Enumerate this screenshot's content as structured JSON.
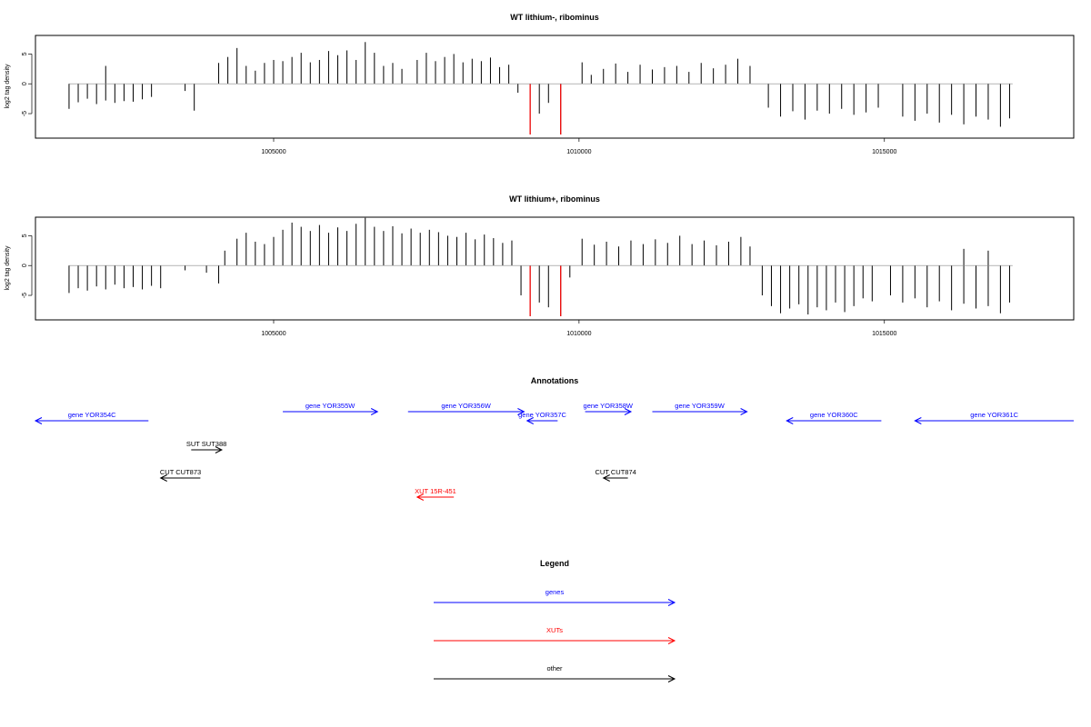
{
  "chart_data": [
    {
      "type": "bar",
      "title": "WT lithium-, ribominus",
      "ylabel": "log2 tag density",
      "xlim": [
        1001100,
        1018100
      ],
      "ylim": [
        -8.5,
        7.5
      ],
      "x_ticks": [
        1005000,
        1010000,
        1015000
      ],
      "x_tick_labels": [
        "1005000",
        "1010000",
        "1015000"
      ],
      "y_ticks": [
        -5,
        0,
        5
      ],
      "y_tick_labels": [
        "-5",
        "0",
        "5"
      ],
      "series": [
        {
          "values": [
            [
              1001650,
              -4.2
            ],
            [
              1001800,
              -3.1
            ],
            [
              1001950,
              -2.5
            ],
            [
              1002100,
              -3.4
            ],
            [
              1002250,
              -2.8
            ],
            [
              1002400,
              -3.2
            ],
            [
              1002550,
              -2.9
            ],
            [
              1002700,
              -3.0
            ],
            [
              1002850,
              -2.6
            ],
            [
              1003000,
              -2.2
            ],
            [
              1002250,
              3.0
            ],
            [
              1003550,
              -1.2
            ],
            [
              1003700,
              -4.5
            ],
            [
              1004100,
              3.5
            ],
            [
              1004250,
              4.5
            ],
            [
              1004400,
              6.0
            ],
            [
              1004550,
              3.0
            ],
            [
              1004700,
              2.2
            ],
            [
              1004850,
              3.5
            ],
            [
              1005000,
              4.0
            ],
            [
              1005150,
              3.8
            ],
            [
              1005300,
              4.5
            ],
            [
              1005450,
              5.2
            ],
            [
              1005600,
              3.6
            ],
            [
              1005750,
              4.0
            ],
            [
              1005900,
              5.5
            ],
            [
              1006050,
              4.8
            ],
            [
              1006200,
              5.6
            ],
            [
              1006350,
              4.0
            ],
            [
              1006500,
              7.0
            ],
            [
              1006650,
              5.2
            ],
            [
              1006800,
              3.0
            ],
            [
              1006950,
              3.5
            ],
            [
              1007100,
              2.5
            ],
            [
              1007350,
              4.0
            ],
            [
              1007500,
              5.2
            ],
            [
              1007650,
              3.8
            ],
            [
              1007800,
              4.5
            ],
            [
              1007950,
              5.0
            ],
            [
              1008100,
              3.6
            ],
            [
              1008250,
              4.2
            ],
            [
              1008400,
              3.8
            ],
            [
              1008550,
              4.4
            ],
            [
              1008700,
              2.8
            ],
            [
              1008850,
              3.2
            ],
            [
              1009000,
              -1.5
            ],
            [
              1009200,
              -8.5
            ],
            [
              1009350,
              -5.0
            ],
            [
              1009500,
              -3.2
            ],
            [
              1009700,
              -8.5
            ],
            [
              1010050,
              3.6
            ],
            [
              1010200,
              1.5
            ],
            [
              1010400,
              2.5
            ],
            [
              1010600,
              3.4
            ],
            [
              1010800,
              2.0
            ],
            [
              1011000,
              3.2
            ],
            [
              1011200,
              2.4
            ],
            [
              1011400,
              2.8
            ],
            [
              1011600,
              3.0
            ],
            [
              1011800,
              2.0
            ],
            [
              1012000,
              3.5
            ],
            [
              1012200,
              2.6
            ],
            [
              1012400,
              3.2
            ],
            [
              1012600,
              4.2
            ],
            [
              1012800,
              3.0
            ],
            [
              1013100,
              -4.0
            ],
            [
              1013300,
              -5.5
            ],
            [
              1013500,
              -4.6
            ],
            [
              1013700,
              -6.0
            ],
            [
              1013900,
              -4.5
            ],
            [
              1014100,
              -5.0
            ],
            [
              1014300,
              -4.2
            ],
            [
              1014500,
              -5.2
            ],
            [
              1014700,
              -4.8
            ],
            [
              1014900,
              -4.0
            ],
            [
              1015300,
              -5.5
            ],
            [
              1015500,
              -6.2
            ],
            [
              1015700,
              -5.0
            ],
            [
              1015900,
              -6.5
            ],
            [
              1016100,
              -5.2
            ],
            [
              1016300,
              -6.8
            ],
            [
              1016500,
              -5.5
            ],
            [
              1016700,
              -6.0
            ],
            [
              1016900,
              -7.2
            ],
            [
              1017050,
              -5.8
            ]
          ]
        }
      ],
      "highlight": [
        {
          "x": 1009200,
          "value": -8.5,
          "color": "#ff0000"
        },
        {
          "x": 1009700,
          "value": -8.5,
          "color": "#ff0000"
        }
      ]
    },
    {
      "type": "bar",
      "title": "WT lithium+, ribominus",
      "ylabel": "log2 tag density",
      "xlim": [
        1001100,
        1018100
      ],
      "ylim": [
        -8.5,
        7.5
      ],
      "x_ticks": [
        1005000,
        1010000,
        1015000
      ],
      "x_tick_labels": [
        "1005000",
        "1010000",
        "1015000"
      ],
      "y_ticks": [
        -5,
        0,
        5
      ],
      "y_tick_labels": [
        "-5",
        "0",
        "5"
      ],
      "series": [
        {
          "values": [
            [
              1001650,
              -4.6
            ],
            [
              1001800,
              -3.8
            ],
            [
              1001950,
              -4.2
            ],
            [
              1002100,
              -3.5
            ],
            [
              1002250,
              -4.0
            ],
            [
              1002400,
              -3.2
            ],
            [
              1002550,
              -3.8
            ],
            [
              1002700,
              -3.6
            ],
            [
              1002850,
              -4.0
            ],
            [
              1003000,
              -3.4
            ],
            [
              1003150,
              -3.8
            ],
            [
              1003550,
              -0.8
            ],
            [
              1003900,
              -1.2
            ],
            [
              1004100,
              -3.0
            ],
            [
              1004200,
              2.5
            ],
            [
              1004400,
              4.5
            ],
            [
              1004550,
              5.5
            ],
            [
              1004700,
              4.0
            ],
            [
              1004850,
              3.6
            ],
            [
              1005000,
              4.8
            ],
            [
              1005150,
              6.0
            ],
            [
              1005300,
              7.2
            ],
            [
              1005450,
              6.5
            ],
            [
              1005600,
              5.8
            ],
            [
              1005750,
              6.8
            ],
            [
              1005900,
              5.5
            ],
            [
              1006050,
              6.4
            ],
            [
              1006200,
              5.8
            ],
            [
              1006350,
              7.0
            ],
            [
              1006500,
              8.0
            ],
            [
              1006650,
              6.5
            ],
            [
              1006800,
              5.8
            ],
            [
              1006950,
              6.6
            ],
            [
              1007100,
              5.4
            ],
            [
              1007250,
              6.2
            ],
            [
              1007400,
              5.5
            ],
            [
              1007550,
              6.0
            ],
            [
              1007700,
              5.6
            ],
            [
              1007850,
              5.0
            ],
            [
              1008000,
              4.8
            ],
            [
              1008150,
              5.5
            ],
            [
              1008300,
              4.4
            ],
            [
              1008450,
              5.2
            ],
            [
              1008600,
              4.6
            ],
            [
              1008750,
              3.8
            ],
            [
              1008900,
              4.2
            ],
            [
              1009050,
              -5.0
            ],
            [
              1009200,
              -8.5
            ],
            [
              1009350,
              -6.2
            ],
            [
              1009500,
              -7.0
            ],
            [
              1009700,
              -8.5
            ],
            [
              1009850,
              -2.0
            ],
            [
              1010050,
              4.5
            ],
            [
              1010250,
              3.5
            ],
            [
              1010450,
              4.0
            ],
            [
              1010650,
              3.2
            ],
            [
              1010850,
              4.2
            ],
            [
              1011050,
              3.6
            ],
            [
              1011250,
              4.4
            ],
            [
              1011450,
              3.8
            ],
            [
              1011650,
              5.0
            ],
            [
              1011850,
              3.6
            ],
            [
              1012050,
              4.2
            ],
            [
              1012250,
              3.4
            ],
            [
              1012450,
              4.0
            ],
            [
              1012650,
              4.8
            ],
            [
              1012800,
              3.2
            ],
            [
              1013000,
              -5.0
            ],
            [
              1013150,
              -6.8
            ],
            [
              1013300,
              -8.0
            ],
            [
              1013450,
              -7.2
            ],
            [
              1013600,
              -6.5
            ],
            [
              1013750,
              -8.2
            ],
            [
              1013900,
              -7.0
            ],
            [
              1014050,
              -7.5
            ],
            [
              1014200,
              -6.2
            ],
            [
              1014350,
              -7.8
            ],
            [
              1014500,
              -6.8
            ],
            [
              1014650,
              -5.5
            ],
            [
              1014800,
              -6.0
            ],
            [
              1015100,
              -5.0
            ],
            [
              1015300,
              -6.2
            ],
            [
              1015500,
              -5.5
            ],
            [
              1015700,
              -7.0
            ],
            [
              1015900,
              -6.0
            ],
            [
              1016100,
              -7.5
            ],
            [
              1016300,
              -6.4
            ],
            [
              1016500,
              -7.2
            ],
            [
              1016700,
              -6.8
            ],
            [
              1016900,
              -8.0
            ],
            [
              1017050,
              -6.2
            ],
            [
              1016300,
              2.8
            ],
            [
              1016700,
              2.5
            ]
          ]
        }
      ],
      "highlight": [
        {
          "x": 1009200,
          "value": -8.5,
          "color": "#ff0000"
        },
        {
          "x": 1009700,
          "value": -8.5,
          "color": "#ff0000"
        }
      ]
    }
  ],
  "annotations": {
    "title": "Annotations",
    "xlim": [
      1001100,
      1018100
    ],
    "items": [
      {
        "label": "gene YOR354C",
        "start": 1001100,
        "end": 1002950,
        "row": 1,
        "strand": "-",
        "color": "#0000ff"
      },
      {
        "label": "gene YOR355W",
        "start": 1005150,
        "end": 1006700,
        "row": 0,
        "strand": "+",
        "color": "#0000ff"
      },
      {
        "label": "gene YOR356W",
        "start": 1007200,
        "end": 1009100,
        "row": 0,
        "strand": "+",
        "color": "#0000ff"
      },
      {
        "label": "gene YOR357C",
        "start": 1009150,
        "end": 1009650,
        "row": 1,
        "strand": "-",
        "color": "#0000ff"
      },
      {
        "label": "gene YOR358W",
        "start": 1010100,
        "end": 1010850,
        "row": 0,
        "strand": "+",
        "color": "#0000ff"
      },
      {
        "label": "gene YOR359W",
        "start": 1011200,
        "end": 1012750,
        "row": 0,
        "strand": "+",
        "color": "#0000ff"
      },
      {
        "label": "gene YOR360C",
        "start": 1013400,
        "end": 1014950,
        "row": 1,
        "strand": "-",
        "color": "#0000ff"
      },
      {
        "label": "gene YOR361C",
        "start": 1015500,
        "end": 1018100,
        "row": 1,
        "strand": "-",
        "color": "#0000ff"
      },
      {
        "label": "SUT SUT388",
        "start": 1003650,
        "end": 1004150,
        "row": 2,
        "strand": "+",
        "color": "#000000"
      },
      {
        "label": "CUT CUT873",
        "start": 1003150,
        "end": 1003800,
        "row": 3,
        "strand": "-",
        "color": "#000000"
      },
      {
        "label": "CUT CUT874",
        "start": 1010400,
        "end": 1010800,
        "row": 3,
        "strand": "-",
        "color": "#000000"
      },
      {
        "label": "XUT 15R-451",
        "start": 1007350,
        "end": 1007950,
        "row": 4,
        "strand": "-",
        "color": "#ff0000"
      }
    ]
  },
  "legend": {
    "title": "Legend",
    "items": [
      {
        "label": "genes",
        "color": "#0000ff"
      },
      {
        "label": "XUTs",
        "color": "#ff0000"
      },
      {
        "label": "other",
        "color": "#000000"
      }
    ]
  }
}
